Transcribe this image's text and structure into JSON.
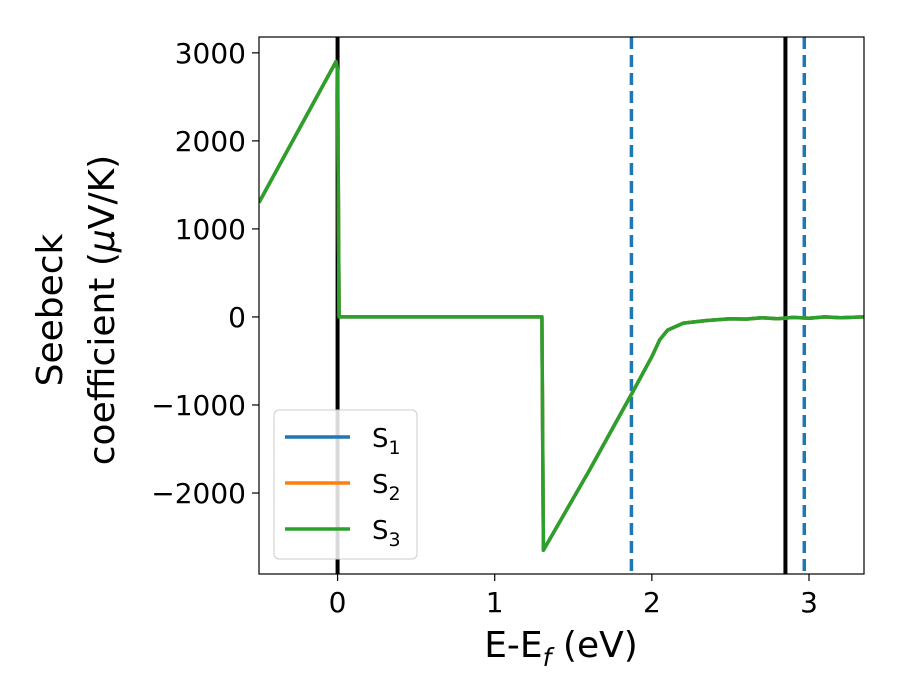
{
  "chart_data": {
    "type": "line",
    "title": "",
    "xlabel": {
      "main": "E-E",
      "sub": "f",
      "suffix": " (eV)"
    },
    "ylabel": {
      "line1": "Seebeck",
      "line2_start": "coefficient  (",
      "mu": "μ",
      "line2_end": "V/K)"
    },
    "xlim": [
      -0.5,
      3.35
    ],
    "ylim": [
      -2920,
      3180
    ],
    "xticks": [
      0,
      1,
      2,
      3
    ],
    "xtick_labels": [
      "0",
      "1",
      "2",
      "3"
    ],
    "yticks": [
      3000,
      2000,
      1000,
      0,
      -1000,
      -2000
    ],
    "ytick_labels": [
      "3000",
      "2000",
      "1000",
      "0",
      "−1000",
      "−2000"
    ],
    "grid": false,
    "legend_placement": "lower-left",
    "vertical_lines": [
      {
        "x": 0.0,
        "style": "solid",
        "color": "#000000"
      },
      {
        "x": 2.85,
        "style": "solid",
        "color": "#000000"
      },
      {
        "x": 1.87,
        "style": "dashed",
        "color": "#1f77b4"
      },
      {
        "x": 2.97,
        "style": "dashed",
        "color": "#1f77b4"
      }
    ],
    "series": [
      {
        "name": "S",
        "sub": "1",
        "color": "#1f77b4",
        "x": [
          -0.5,
          -0.01,
          0.0,
          0.01,
          1.3,
          1.31,
          1.6,
          1.87,
          2.0,
          2.05,
          2.1,
          2.2,
          2.35,
          2.5,
          2.6,
          2.7,
          2.8,
          2.9,
          3.0,
          3.1,
          3.2,
          3.35
        ],
        "y": [
          1300,
          2900,
          2800,
          0,
          0,
          -2650,
          -1750,
          -880,
          -450,
          -260,
          -150,
          -70,
          -40,
          -20,
          -25,
          -10,
          -20,
          -5,
          -15,
          0,
          -10,
          0
        ]
      },
      {
        "name": "S",
        "sub": "2",
        "color": "#ff7f0e",
        "x": [
          -0.5,
          -0.01,
          0.0,
          0.01,
          1.3,
          1.31,
          1.6,
          1.87,
          2.0,
          2.05,
          2.1,
          2.2,
          2.35,
          2.5,
          2.6,
          2.7,
          2.8,
          2.9,
          3.0,
          3.1,
          3.2,
          3.35
        ],
        "y": [
          1300,
          2900,
          2800,
          0,
          0,
          -2650,
          -1750,
          -880,
          -450,
          -260,
          -150,
          -70,
          -40,
          -20,
          -25,
          -10,
          -20,
          -5,
          -15,
          0,
          -10,
          0
        ]
      },
      {
        "name": "S",
        "sub": "3",
        "color": "#2ca02c",
        "x": [
          -0.5,
          -0.01,
          0.0,
          0.01,
          1.3,
          1.31,
          1.6,
          1.87,
          2.0,
          2.05,
          2.1,
          2.2,
          2.35,
          2.5,
          2.6,
          2.7,
          2.8,
          2.9,
          3.0,
          3.1,
          3.2,
          3.35
        ],
        "y": [
          1300,
          2900,
          2800,
          0,
          0,
          -2650,
          -1750,
          -880,
          -450,
          -260,
          -150,
          -70,
          -40,
          -20,
          -25,
          -10,
          -20,
          -5,
          -15,
          0,
          -10,
          0
        ]
      }
    ]
  }
}
